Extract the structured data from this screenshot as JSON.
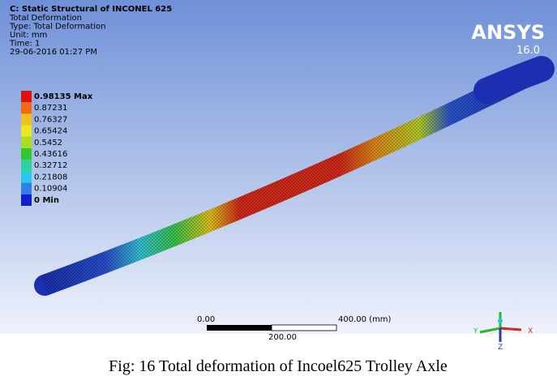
{
  "header": {
    "title": "C: Static Structural of INCONEL 625",
    "lines": [
      "Total Deformation",
      "Type: Total Deformation",
      "Unit: mm",
      "Time: 1",
      "29-06-2016 01:27 PM"
    ]
  },
  "legend": {
    "labels": [
      "0.98135 Max",
      "0.87231",
      "0.76327",
      "0.65424",
      "0.5452",
      "0.43616",
      "0.32712",
      "0.21808",
      "0.10904",
      "0 Min"
    ]
  },
  "logo": {
    "name": "ANSYS",
    "version": "16.0"
  },
  "scale_bar": {
    "start": "0.00",
    "end": "400.00 (mm)",
    "middle": "200.00"
  },
  "triad": {
    "y": "Y",
    "z": "Z",
    "x": "X"
  },
  "caption": "Fig: 16 Total deformation of Incoel625 Trolley Axle"
}
